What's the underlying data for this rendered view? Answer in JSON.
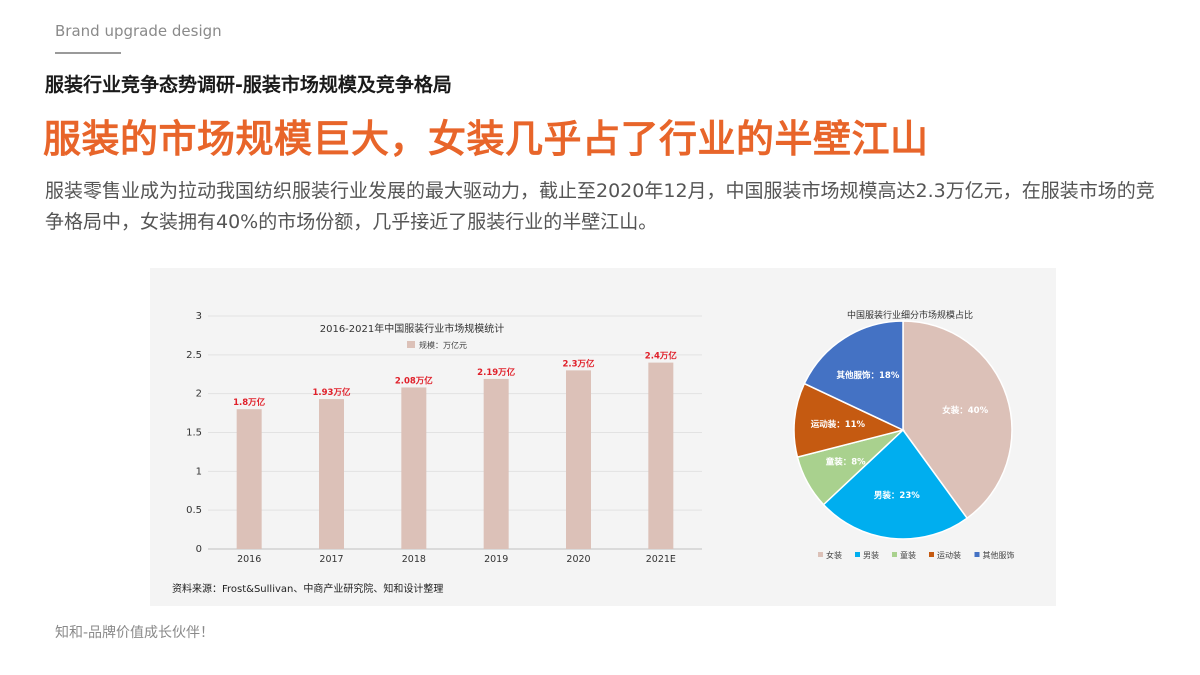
{
  "header": {
    "brand": "Brand upgrade design",
    "subtitle": "服装行业竞争态势调研-服装市场规模及竞争格局",
    "headline": "服装的市场规模巨大，女装几乎占了行业的半壁江山",
    "body": "服装零售业成为拉动我国纺织服装行业发展的最大驱动力，截止至2020年12月，中国服装市场规模高达2.3万亿元，在服装市场的竞争格局中，女装拥有40%的市场份额，几乎接近了服装行业的半壁江山。"
  },
  "footer": {
    "text": "知和-品牌价值成长伙伴！"
  },
  "colors": {
    "accent": "#e8652a",
    "bar": "#dcc1b8",
    "data_label": "#e0202a",
    "pie": [
      "#dcc1b8",
      "#00aeef",
      "#a9d18e",
      "#c55a11",
      "#4472c4"
    ]
  },
  "chart_data": [
    {
      "type": "bar",
      "title": "2016-2021年中国服装行业市场规模统计",
      "legend": "规模：万亿元",
      "categories": [
        "2016",
        "2017",
        "2018",
        "2019",
        "2020",
        "2021E"
      ],
      "values": [
        1.8,
        1.93,
        2.08,
        2.19,
        2.3,
        2.4
      ],
      "data_labels": [
        "1.8万亿",
        "1.93万亿",
        "2.08万亿",
        "2.19万亿",
        "2.3万亿",
        "2.4万亿"
      ],
      "y_ticks": [
        "0",
        "0.5",
        "1",
        "1.5",
        "2",
        "2.5",
        "3"
      ],
      "ylim": [
        0,
        3
      ],
      "source": "资料来源：Frost&Sullivan、中商产业研究院、知和设计整理"
    },
    {
      "type": "pie",
      "title": "中国服装行业细分市场规模占比",
      "slices": [
        {
          "name": "女装",
          "value": 40,
          "label": "女装：40%"
        },
        {
          "name": "男装",
          "value": 23,
          "label": "男装：23%"
        },
        {
          "name": "童装",
          "value": 8,
          "label": "童装：8%"
        },
        {
          "name": "运动装",
          "value": 11,
          "label": "运动装：11%"
        },
        {
          "name": "其他服饰",
          "value": 18,
          "label": "其他服饰：18%"
        }
      ],
      "legend_position": "bottom"
    }
  ]
}
